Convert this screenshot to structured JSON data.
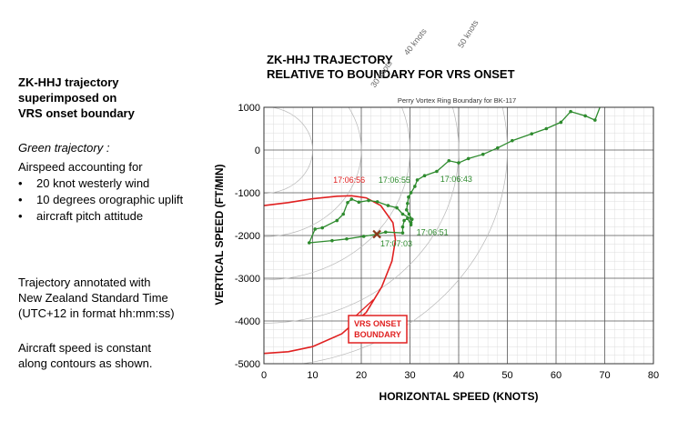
{
  "left_panel": {
    "title_lines": [
      "ZK-HHJ trajectory",
      "superimposed on",
      "VRS onset boundary"
    ],
    "green_label": "Green trajectory :",
    "airspeed_label": "Airspeed accounting for",
    "bullets": [
      "20 knot westerly wind",
      "10 degrees orographic uplift",
      "aircraft pitch attitude"
    ],
    "note1_lines": [
      "Trajectory annotated with",
      "New Zealand Standard Time",
      "(UTC+12 in format hh:mm:ss)"
    ],
    "note2_lines": [
      "Aircraft speed is constant",
      "along contours as shown."
    ]
  },
  "chart_data": {
    "type": "line",
    "title_lines": [
      "ZK-HHJ TRAJECTORY",
      "RELATIVE TO BOUNDARY FOR VRS ONSET"
    ],
    "subtitle": "Perry Vortex Ring Boundary for BK-117",
    "xlabel": "HORIZONTAL SPEED (KNOTS)",
    "ylabel": "VERTICAL SPEED (FT/MIN)",
    "xlim": [
      0,
      80
    ],
    "ylim": [
      -5000,
      1000
    ],
    "xticks": [
      "0",
      "10",
      "20",
      "30",
      "40",
      "50",
      "60",
      "70",
      "80"
    ],
    "yticks": [
      "1000",
      "0",
      "-1000",
      "-2000",
      "-3000",
      "-4000",
      "-5000"
    ],
    "grid": true,
    "contours": [
      {
        "label": "30 knots",
        "speed": 30
      },
      {
        "label": "40 knots",
        "speed": 40
      },
      {
        "label": "50 knots",
        "speed": 50
      }
    ],
    "vrs_boundary": {
      "label_lines": [
        "VRS ONSET",
        "BOUNDARY"
      ],
      "color": "#e02020",
      "points": [
        [
          0,
          -1300
        ],
        [
          5,
          -1230
        ],
        [
          10,
          -1140
        ],
        [
          15,
          -1080
        ],
        [
          18,
          -1070
        ],
        [
          21,
          -1120
        ],
        [
          24,
          -1300
        ],
        [
          26.5,
          -1700
        ],
        [
          27,
          -2100
        ],
        [
          26.3,
          -2600
        ],
        [
          24.2,
          -3200
        ],
        [
          21,
          -3800
        ],
        [
          16,
          -4300
        ],
        [
          10,
          -4600
        ],
        [
          5,
          -4720
        ],
        [
          0,
          -4760
        ]
      ]
    },
    "series": [
      {
        "color": "#2e8b2e",
        "points": [
          [
            69,
            1000
          ],
          [
            68,
            700
          ],
          [
            66,
            800
          ],
          [
            63,
            900
          ],
          [
            61,
            650
          ],
          [
            58,
            500
          ],
          [
            55,
            380
          ],
          [
            51,
            220
          ],
          [
            48,
            50
          ],
          [
            45,
            -100
          ],
          [
            42,
            -200
          ],
          [
            40,
            -300
          ],
          [
            38,
            -250
          ],
          [
            35.5,
            -500
          ],
          [
            33,
            -600
          ],
          [
            31.5,
            -700
          ],
          [
            31,
            -850
          ],
          [
            30.2,
            -1000
          ],
          [
            29.7,
            -1100
          ],
          [
            29.5,
            -1250
          ],
          [
            29.3,
            -1400
          ],
          [
            29.8,
            -1500
          ],
          [
            30.4,
            -1620
          ],
          [
            30.2,
            -1750
          ],
          [
            29.5,
            -1600
          ],
          [
            28.8,
            -1650
          ],
          [
            28.5,
            -1800
          ],
          [
            28.5,
            -1940
          ],
          [
            25,
            -1920
          ],
          [
            23.2,
            -1970
          ],
          [
            20.5,
            -2020
          ],
          [
            17,
            -2080
          ],
          [
            14,
            -2120
          ],
          [
            9.3,
            -2170
          ],
          [
            10.5,
            -1850
          ],
          [
            12,
            -1820
          ],
          [
            15,
            -1650
          ],
          [
            16.3,
            -1500
          ],
          [
            17.2,
            -1230
          ],
          [
            18,
            -1150
          ],
          [
            19.5,
            -1220
          ],
          [
            21.5,
            -1180
          ],
          [
            23.3,
            -1210
          ],
          [
            25.5,
            -1300
          ],
          [
            27.3,
            -1350
          ],
          [
            28.5,
            -1500
          ],
          [
            30.4,
            -1620
          ],
          [
            30.2,
            -1700
          ]
        ]
      }
    ],
    "annotations": [
      {
        "text": "17:06:56",
        "x": 17.5,
        "y": -770,
        "color": "#e02020"
      },
      {
        "text": "17:06:55",
        "x": 26.8,
        "y": -770,
        "color": "#2e8b2e"
      },
      {
        "text": "17:06:43",
        "x": 39.5,
        "y": -740,
        "color": "#2e8b2e"
      },
      {
        "text": "17:06:51",
        "x": 34.6,
        "y": -1990,
        "color": "#2e8b2e"
      },
      {
        "text": "17:07:03",
        "x": 27.2,
        "y": -2250,
        "color": "#2e8b2e"
      }
    ],
    "end_marker": {
      "x": 23.2,
      "y": -1970,
      "color": "#8b3a1a"
    }
  }
}
